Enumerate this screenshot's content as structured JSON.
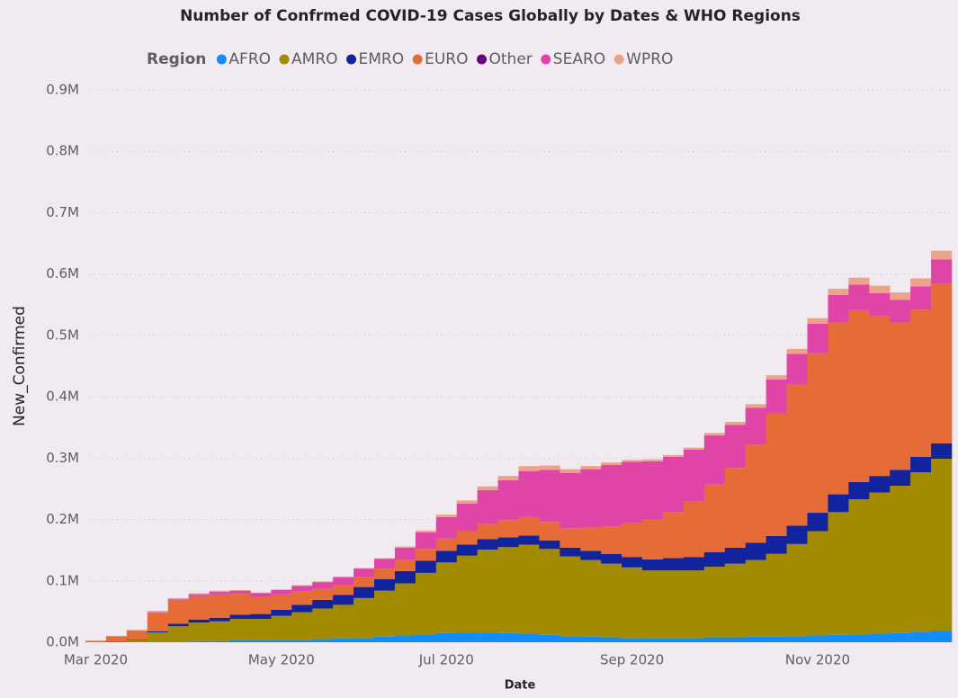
{
  "chart_data": {
    "type": "stacked_bar",
    "title": "Number of Confrmed COVID-19 Cases Globally by Dates & WHO Regions",
    "legend_title": "Region",
    "x_label": "Date",
    "y_label": "New_Confirmed",
    "categories": [
      "Mar 2020",
      null,
      null,
      null,
      null,
      null,
      null,
      null,
      null,
      "May 2020",
      null,
      null,
      null,
      null,
      null,
      null,
      null,
      "Jul 2020",
      null,
      null,
      null,
      null,
      null,
      null,
      null,
      null,
      "Sep 2020",
      null,
      null,
      null,
      null,
      null,
      null,
      null,
      null,
      "Nov 2020",
      null,
      null,
      null,
      null,
      null,
      null
    ],
    "series": [
      {
        "name": "AFRO",
        "color": "#118dff",
        "values": [
          0,
          0,
          0,
          1000,
          1000,
          2000,
          2000,
          3000,
          3000,
          3000,
          4000,
          5000,
          6000,
          7000,
          9000,
          11000,
          13000,
          15000,
          16000,
          16000,
          15000,
          14000,
          12000,
          10000,
          9000,
          8000,
          7000,
          7000,
          7000,
          7000,
          8000,
          8000,
          9000,
          9000,
          10000,
          11000,
          12000,
          13000,
          14000,
          15000,
          17000,
          19000
        ]
      },
      {
        "name": "AMRO",
        "color": "#a38b00",
        "values": [
          0,
          1000,
          3000,
          15000,
          25000,
          30000,
          32000,
          35000,
          35000,
          40000,
          45000,
          50000,
          55000,
          65000,
          75000,
          85000,
          100000,
          115000,
          125000,
          135000,
          140000,
          145000,
          140000,
          130000,
          125000,
          120000,
          115000,
          110000,
          110000,
          110000,
          115000,
          120000,
          125000,
          135000,
          150000,
          170000,
          200000,
          220000,
          230000,
          240000,
          260000,
          280000
        ]
      },
      {
        "name": "EMRO",
        "color": "#12239e",
        "values": [
          0,
          500,
          1000,
          2000,
          4000,
          5000,
          6000,
          7000,
          8000,
          10000,
          12000,
          14000,
          16000,
          18000,
          19000,
          20000,
          20000,
          19000,
          18000,
          17000,
          16000,
          15000,
          14000,
          14000,
          15000,
          16000,
          17000,
          18000,
          20000,
          22000,
          24000,
          26000,
          28000,
          29000,
          30000,
          30000,
          29000,
          28000,
          27000,
          26000,
          25000,
          25000
        ]
      },
      {
        "name": "EURO",
        "color": "#e66c37",
        "values": [
          2000,
          8000,
          15000,
          30000,
          38000,
          38000,
          38000,
          34000,
          28000,
          25000,
          22000,
          18000,
          16000,
          16000,
          17000,
          18000,
          19000,
          20000,
          22000,
          25000,
          28000,
          30000,
          30000,
          32000,
          38000,
          45000,
          55000,
          65000,
          75000,
          90000,
          110000,
          130000,
          160000,
          200000,
          230000,
          260000,
          280000,
          280000,
          260000,
          240000,
          240000,
          260000
        ]
      },
      {
        "name": "Other",
        "color": "#6b007b",
        "values": [
          0,
          0,
          0,
          0,
          0,
          0,
          0,
          0,
          0,
          0,
          0,
          0,
          0,
          0,
          0,
          0,
          0,
          0,
          0,
          0,
          0,
          0,
          0,
          0,
          0,
          0,
          0,
          0,
          0,
          0,
          0,
          0,
          0,
          0,
          0,
          0,
          0,
          0,
          0,
          0,
          0,
          0
        ]
      },
      {
        "name": "SEARO",
        "color": "#e044a7",
        "values": [
          0,
          0,
          0,
          1000,
          2000,
          3000,
          4000,
          5000,
          6000,
          7000,
          9000,
          11000,
          13000,
          14000,
          16000,
          20000,
          27000,
          35000,
          45000,
          55000,
          65000,
          75000,
          85000,
          90000,
          95000,
          100000,
          100000,
          95000,
          90000,
          85000,
          80000,
          70000,
          60000,
          55000,
          50000,
          48000,
          45000,
          42000,
          38000,
          37000,
          38000,
          40000
        ]
      },
      {
        "name": "WPRO",
        "color": "#eda38a",
        "values": [
          1000,
          1000,
          1000,
          2000,
          2000,
          2000,
          2000,
          1000,
          1000,
          1000,
          1000,
          1000,
          1000,
          1000,
          1000,
          2000,
          3000,
          4000,
          5000,
          6000,
          7000,
          8000,
          7000,
          6000,
          5000,
          4000,
          3000,
          3000,
          3000,
          3000,
          4000,
          5000,
          6000,
          7000,
          8000,
          9000,
          10000,
          11000,
          12000,
          12000,
          13000,
          14000
        ]
      }
    ],
    "ylim": [
      0,
      900000
    ],
    "yticks": [
      {
        "value": 0,
        "label": "0.0M"
      },
      {
        "value": 100000,
        "label": "0.1M"
      },
      {
        "value": 200000,
        "label": "0.2M"
      },
      {
        "value": 300000,
        "label": "0.3M"
      },
      {
        "value": 400000,
        "label": "0.4M"
      },
      {
        "value": 500000,
        "label": "0.5M"
      },
      {
        "value": 600000,
        "label": "0.6M"
      },
      {
        "value": 700000,
        "label": "0.7M"
      },
      {
        "value": 800000,
        "label": "0.8M"
      },
      {
        "value": 900000,
        "label": "0.9M"
      }
    ],
    "grid": true
  }
}
